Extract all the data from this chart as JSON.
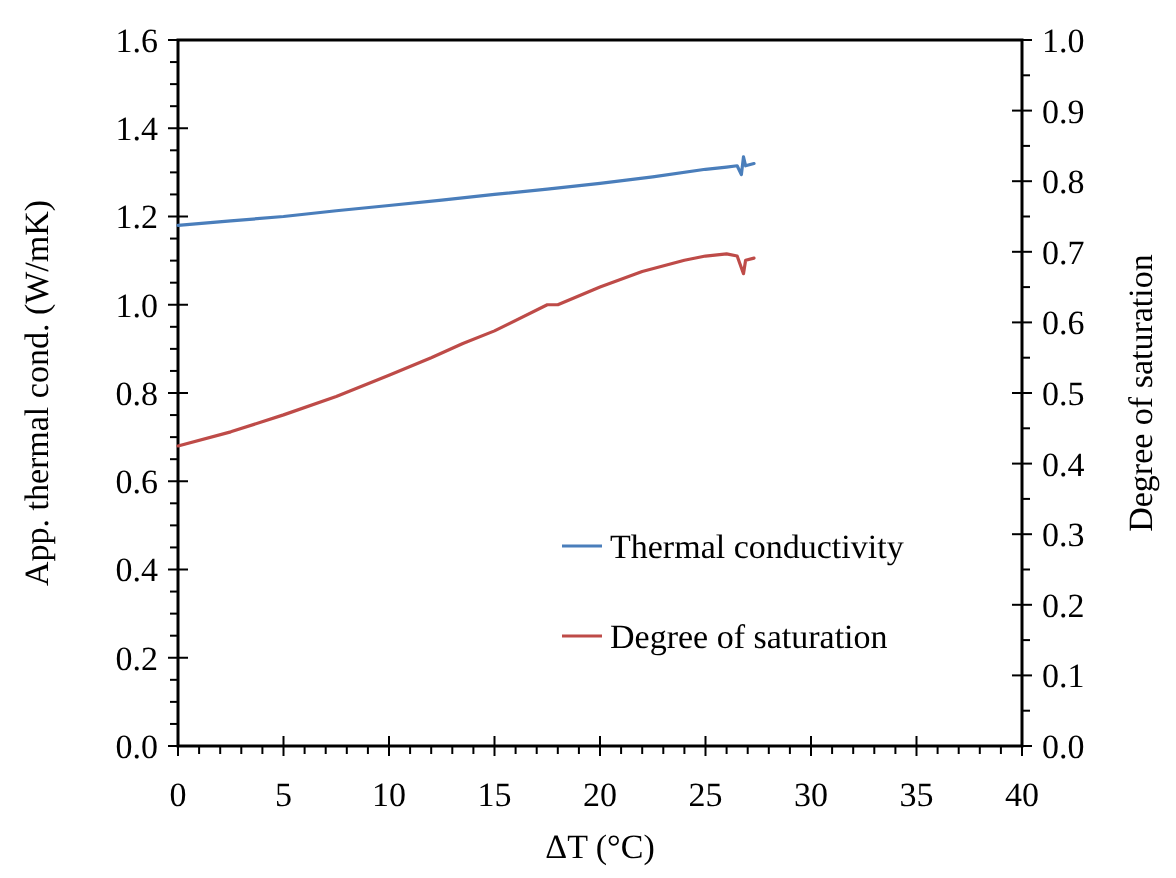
{
  "chart_data": {
    "type": "line",
    "xlabel": "ΔT (°C)",
    "ylabel": "App. thermal cond. (W/mK)",
    "y2label": "Degree of saturation",
    "xlim": [
      0,
      40
    ],
    "xticks": [
      0,
      5,
      10,
      15,
      20,
      25,
      30,
      35,
      40
    ],
    "ylim": [
      0,
      1.6
    ],
    "yticks": [
      {
        "value": 0,
        "label": "0.0"
      },
      {
        "value": 0.2,
        "label": "0.2"
      },
      {
        "value": 0.4,
        "label": "0.4"
      },
      {
        "value": 0.6,
        "label": "0.6"
      },
      {
        "value": 0.8,
        "label": "0.8"
      },
      {
        "value": 1.0,
        "label": "1.0"
      },
      {
        "value": 1.2,
        "label": "1.2"
      },
      {
        "value": 1.4,
        "label": "1.4"
      },
      {
        "value": 1.6,
        "label": "1.6"
      }
    ],
    "y2lim": [
      0,
      1
    ],
    "y2ticks": [
      {
        "value": 0,
        "label": "0.0"
      },
      {
        "value": 0.1,
        "label": "0.1"
      },
      {
        "value": 0.2,
        "label": "0.2"
      },
      {
        "value": 0.3,
        "label": "0.3"
      },
      {
        "value": 0.4,
        "label": "0.4"
      },
      {
        "value": 0.5,
        "label": "0.5"
      },
      {
        "value": 0.6,
        "label": "0.6"
      },
      {
        "value": 0.7,
        "label": "0.7"
      },
      {
        "value": 0.8,
        "label": "0.8"
      },
      {
        "value": 0.9,
        "label": "0.9"
      },
      {
        "value": 1,
        "label": "1.0"
      }
    ],
    "grid": false,
    "legend": "bottom right",
    "marker": "none",
    "line_style": "solid",
    "series": [
      {
        "name": "Thermal conductivity",
        "color": "#4a7ebb",
        "x": [
          0,
          2.5,
          5,
          7.5,
          10,
          12.5,
          15,
          17.5,
          20,
          22.5,
          25,
          26,
          26.5,
          26.7,
          26.8,
          26.9,
          27.3
        ],
        "values": [
          1.18,
          1.19,
          1.2,
          1.213,
          1.225,
          1.237,
          1.25,
          1.262,
          1.275,
          1.29,
          1.307,
          1.312,
          1.315,
          1.295,
          1.335,
          1.315,
          1.32
        ]
      },
      {
        "name": "Degree of saturation",
        "color": "#be4b48",
        "axis": "y2",
        "x": [
          0,
          2.5,
          5,
          7.5,
          10,
          12,
          13.5,
          15,
          17.5,
          18,
          20,
          22,
          24,
          25,
          26,
          26.5,
          26.8,
          26.9,
          27.3
        ],
        "values": [
          0.425,
          0.445,
          0.469,
          0.495,
          0.525,
          0.55,
          0.57,
          0.588,
          0.625,
          0.625,
          0.65,
          0.672,
          0.688,
          0.694,
          0.697,
          0.694,
          0.669,
          0.688,
          0.691
        ]
      }
    ]
  }
}
